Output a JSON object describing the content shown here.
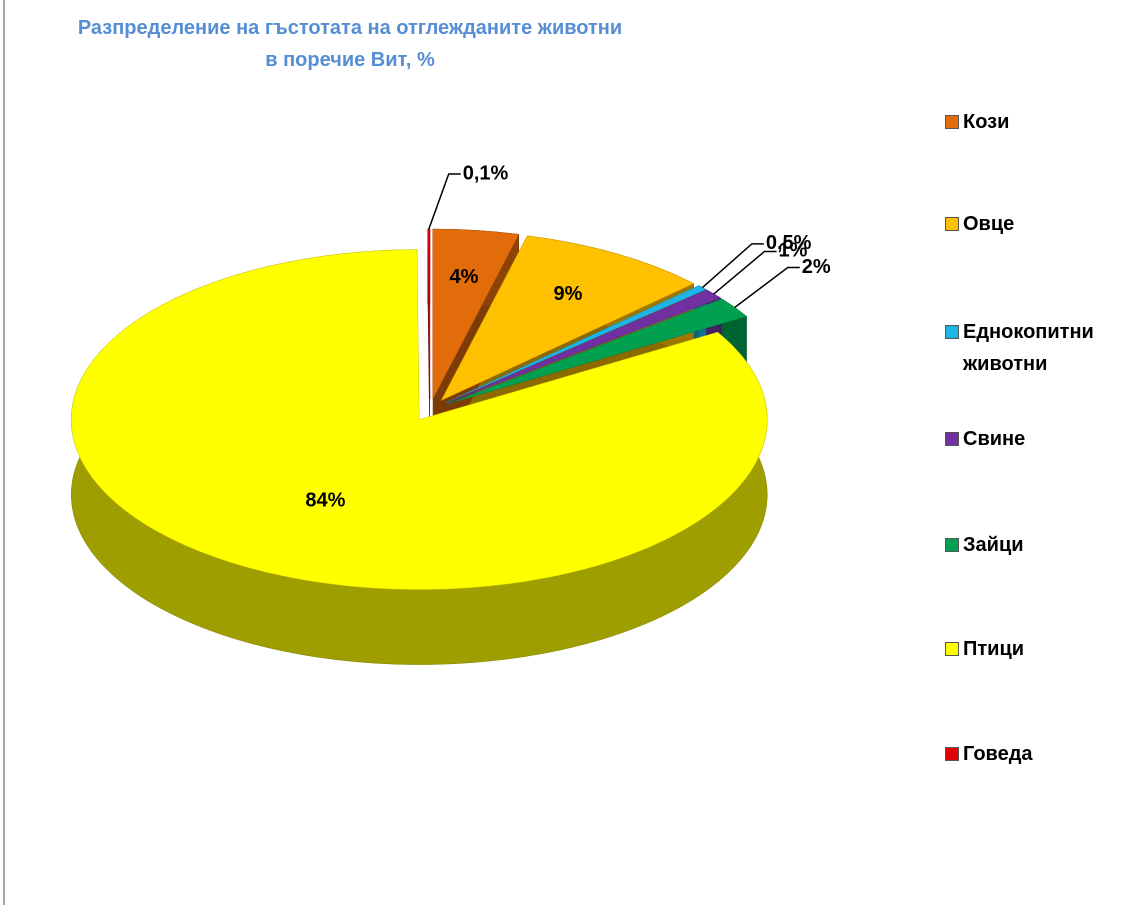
{
  "chart_data": {
    "type": "pie3d",
    "title": "Разпределение на гъстотата на отглежданите животни\nв поречие Вит, %",
    "categories": [
      "Кози",
      "Овце",
      "Еднокопитни животни",
      "Свине",
      "Зайци",
      "Птици",
      "Говеда"
    ],
    "values": [
      4,
      9,
      0.5,
      1,
      2,
      84,
      0.1
    ],
    "value_labels": [
      "4%",
      "9%",
      "0,5%",
      "1%",
      "2%",
      "84%",
      "0,1%"
    ],
    "colors": [
      "#e36c0a",
      "#ffc000",
      "#1fb4e6",
      "#7030a0",
      "#00a050",
      "#ffff00",
      "#e00000"
    ],
    "legend": "right"
  }
}
